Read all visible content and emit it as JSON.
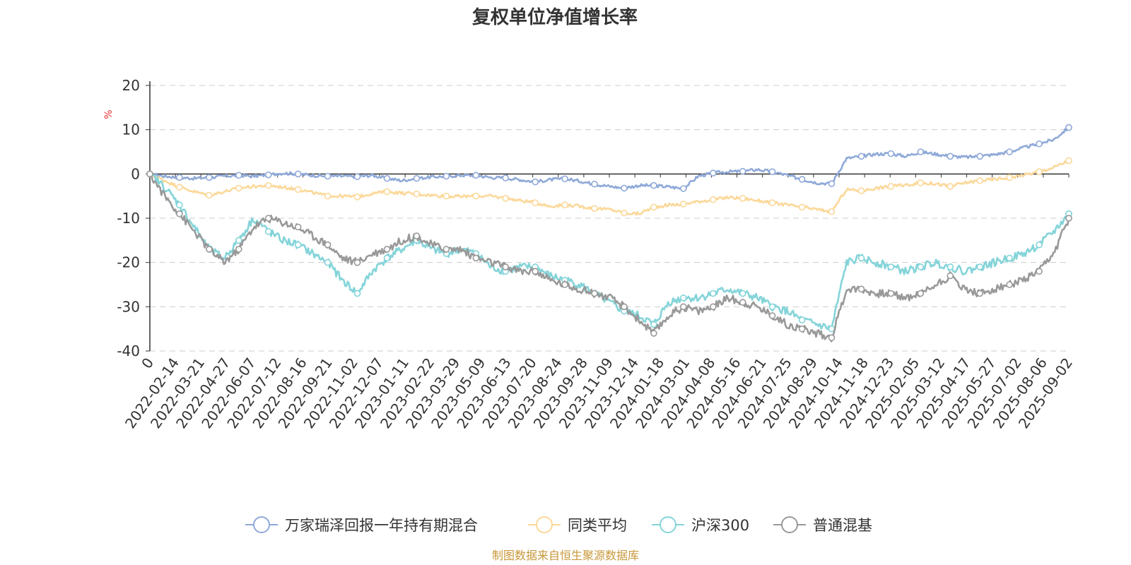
{
  "chart_data": {
    "type": "line",
    "title": "复权单位净值增长率",
    "ylabel": "%",
    "ylim": [
      -40,
      20
    ],
    "yticks": [
      "20",
      "10",
      "0",
      "-10",
      "-20",
      "-30",
      "-40"
    ],
    "ytick_values": [
      20,
      10,
      0,
      -10,
      -20,
      -30,
      -40
    ],
    "grid": true,
    "legend_position": "bottom",
    "source": "制图数据来自恒生聚源数据库",
    "x_tick_labels": [
      "0",
      "2022-02-14",
      "2022-03-21",
      "2022-04-27",
      "2022-06-07",
      "2022-07-12",
      "2022-08-16",
      "2022-09-21",
      "2022-11-02",
      "2022-12-07",
      "2023-01-11",
      "2023-02-22",
      "2023-03-29",
      "2023-05-09",
      "2023-06-13",
      "2023-07-20",
      "2023-08-24",
      "2023-09-28",
      "2023-11-09",
      "2023-12-14",
      "2024-01-18",
      "2024-03-01",
      "2024-04-08",
      "2024-05-16",
      "2024-06-21",
      "2024-07-25",
      "2024-08-29",
      "2024-10-14",
      "2024-11-18",
      "2024-12-23",
      "2025-02-05",
      "2025-03-12",
      "2025-04-17",
      "2025-05-27",
      "2025-07-02",
      "2025-08-06",
      "2025-09-02"
    ],
    "series": [
      {
        "name": "万家瑞泽回报一年持有期混合",
        "color": "#8fa9d8",
        "values": [
          0,
          -0.5,
          -0.8,
          -1.0,
          -0.8,
          -0.5,
          -0.3,
          -0.5,
          -0.2,
          0.2,
          0.0,
          -0.3,
          -0.5,
          -0.5,
          -0.6,
          -0.3,
          -1.0,
          -1.5,
          -1.0,
          -0.7,
          -0.5,
          -0.3,
          -0.3,
          -0.8,
          -0.9,
          -1.3,
          -1.8,
          -1.3,
          -1.1,
          -1.6,
          -2.3,
          -2.8,
          -3.2,
          -2.6,
          -2.6,
          -2.9,
          -3.3,
          -0.5,
          0.2,
          0.5,
          0.6,
          1.0,
          0.5,
          -0.3,
          -1.2,
          -2.0,
          -2.2,
          3.5,
          4.0,
          4.5,
          4.6,
          4.0,
          5.0,
          4.5,
          4.0,
          3.8,
          4.0,
          4.4,
          5.0,
          6.0,
          6.8,
          7.8,
          10.5
        ]
      },
      {
        "name": "同类平均",
        "color": "#fbd899",
        "values": [
          0,
          -1.5,
          -3.0,
          -4.0,
          -4.8,
          -4.0,
          -3.2,
          -2.8,
          -2.6,
          -3.0,
          -3.5,
          -4.2,
          -5.0,
          -5.0,
          -5.2,
          -4.4,
          -4.0,
          -4.3,
          -4.5,
          -4.8,
          -5.0,
          -5.1,
          -5.0,
          -5.0,
          -5.5,
          -6.0,
          -6.5,
          -7.3,
          -7.0,
          -7.3,
          -7.8,
          -8.0,
          -8.8,
          -9.0,
          -7.5,
          -7.0,
          -6.8,
          -6.2,
          -5.8,
          -5.3,
          -5.5,
          -6.0,
          -6.5,
          -7.0,
          -7.5,
          -8.0,
          -8.5,
          -3.5,
          -3.8,
          -3.2,
          -2.8,
          -2.5,
          -2.0,
          -2.2,
          -2.8,
          -2.0,
          -1.5,
          -1.2,
          -0.8,
          -0.2,
          0.5,
          1.5,
          3.0
        ]
      },
      {
        "name": "沪深300",
        "color": "#84d4d9",
        "values": [
          0,
          -3,
          -7,
          -12,
          -17,
          -19,
          -15,
          -10,
          -13,
          -15,
          -16,
          -18,
          -20,
          -24,
          -27,
          -22,
          -19,
          -17,
          -15,
          -17,
          -18,
          -17,
          -18,
          -21,
          -22,
          -21,
          -21,
          -23,
          -24,
          -25,
          -27,
          -29,
          -31,
          -32,
          -34,
          -29,
          -28,
          -28,
          -27,
          -26,
          -27,
          -28,
          -30,
          -31,
          -33,
          -34,
          -35,
          -20,
          -19,
          -20,
          -21,
          -22,
          -21,
          -20,
          -21,
          -22,
          -21,
          -20,
          -19,
          -18,
          -16,
          -13,
          -9
        ]
      },
      {
        "name": "普通混基",
        "color": "#999999",
        "values": [
          0,
          -5,
          -9,
          -13,
          -17,
          -20,
          -17,
          -12,
          -10,
          -11,
          -12,
          -14,
          -16,
          -19,
          -20,
          -18,
          -17,
          -15,
          -14,
          -16,
          -17,
          -17,
          -19,
          -20,
          -21,
          -22,
          -22,
          -24,
          -25,
          -26,
          -27,
          -28,
          -30,
          -33,
          -36,
          -32,
          -30,
          -31,
          -30,
          -28,
          -29,
          -30,
          -32,
          -34,
          -35,
          -36,
          -37,
          -26,
          -26,
          -27,
          -27,
          -28,
          -27,
          -25,
          -23,
          -26,
          -27,
          -26,
          -25,
          -24,
          -22,
          -18,
          -10
        ]
      }
    ]
  }
}
